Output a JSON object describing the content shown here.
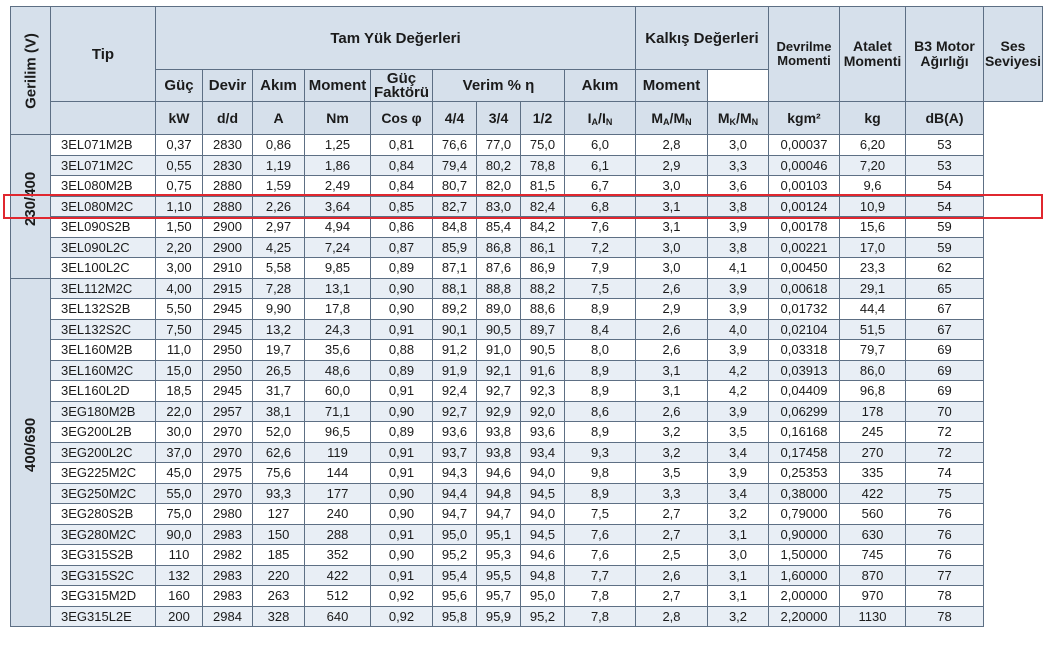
{
  "headers": {
    "gerilim": "Gerilim (V)",
    "tip": "Tip",
    "tam_yuk": "Tam Yük Değerleri",
    "kalkis": "Kalkış Değerleri",
    "devrilme": "Devrilme Momenti",
    "atalet": "Atalet Momenti",
    "b3": "B3 Motor Ağırlığı",
    "ses": "Ses Seviyesi",
    "guc": "Güç",
    "devir": "Devir",
    "akim": "Akım",
    "moment": "Moment",
    "guc_faktoru": "Güç Faktörü",
    "verim": "Verim % η",
    "k_akim": "Akım",
    "k_moment": "Moment",
    "units": {
      "kw": "kW",
      "dd": "d/d",
      "a": "A",
      "nm": "Nm",
      "cos": "Cos φ",
      "v44": "4/4",
      "v34": "3/4",
      "v12": "1/2",
      "ia_main": "I",
      "ia_sub": "A",
      "in_main": "I",
      "in_sub": "N",
      "ma_main": "M",
      "ma_sub": "A",
      "mn_main": "M",
      "mn_sub": "N",
      "mk_main": "M",
      "mk_sub": "K",
      "mn2_main": "M",
      "mn2_sub": "N",
      "kgm2": "kgm²",
      "kg": "kg",
      "db": "dB(A)"
    }
  },
  "voltage_groups": [
    "230/400",
    "400/690"
  ],
  "rows_group1": [
    [
      "3EL071M2B",
      "0,37",
      "2830",
      "0,86",
      "1,25",
      "0,81",
      "76,6",
      "77,0",
      "75,0",
      "6,0",
      "2,8",
      "3,0",
      "0,00037",
      "6,20",
      "53"
    ],
    [
      "3EL071M2C",
      "0,55",
      "2830",
      "1,19",
      "1,86",
      "0,84",
      "79,4",
      "80,2",
      "78,8",
      "6,1",
      "2,9",
      "3,3",
      "0,00046",
      "7,20",
      "53"
    ],
    [
      "3EL080M2B",
      "0,75",
      "2880",
      "1,59",
      "2,49",
      "0,84",
      "80,7",
      "82,0",
      "81,5",
      "6,7",
      "3,0",
      "3,6",
      "0,00103",
      "9,6",
      "54"
    ],
    [
      "3EL080M2C",
      "1,10",
      "2880",
      "2,26",
      "3,64",
      "0,85",
      "82,7",
      "83,0",
      "82,4",
      "6,8",
      "3,1",
      "3,8",
      "0,00124",
      "10,9",
      "54"
    ],
    [
      "3EL090S2B",
      "1,50",
      "2900",
      "2,97",
      "4,94",
      "0,86",
      "84,8",
      "85,4",
      "84,2",
      "7,6",
      "3,1",
      "3,9",
      "0,00178",
      "15,6",
      "59"
    ],
    [
      "3EL090L2C",
      "2,20",
      "2900",
      "4,25",
      "7,24",
      "0,87",
      "85,9",
      "86,8",
      "86,1",
      "7,2",
      "3,0",
      "3,8",
      "0,00221",
      "17,0",
      "59"
    ],
    [
      "3EL100L2C",
      "3,00",
      "2910",
      "5,58",
      "9,85",
      "0,89",
      "87,1",
      "87,6",
      "86,9",
      "7,9",
      "3,0",
      "4,1",
      "0,00450",
      "23,3",
      "62"
    ]
  ],
  "rows_group2": [
    [
      "3EL112M2C",
      "4,00",
      "2915",
      "7,28",
      "13,1",
      "0,90",
      "88,1",
      "88,8",
      "88,2",
      "7,5",
      "2,6",
      "3,9",
      "0,00618",
      "29,1",
      "65"
    ],
    [
      "3EL132S2B",
      "5,50",
      "2945",
      "9,90",
      "17,8",
      "0,90",
      "89,2",
      "89,0",
      "88,6",
      "8,9",
      "2,9",
      "3,9",
      "0,01732",
      "44,4",
      "67"
    ],
    [
      "3EL132S2C",
      "7,50",
      "2945",
      "13,2",
      "24,3",
      "0,91",
      "90,1",
      "90,5",
      "89,7",
      "8,4",
      "2,6",
      "4,0",
      "0,02104",
      "51,5",
      "67"
    ],
    [
      "3EL160M2B",
      "11,0",
      "2950",
      "19,7",
      "35,6",
      "0,88",
      "91,2",
      "91,0",
      "90,5",
      "8,0",
      "2,6",
      "3,9",
      "0,03318",
      "79,7",
      "69"
    ],
    [
      "3EL160M2C",
      "15,0",
      "2950",
      "26,5",
      "48,6",
      "0,89",
      "91,9",
      "92,1",
      "91,6",
      "8,9",
      "3,1",
      "4,2",
      "0,03913",
      "86,0",
      "69"
    ],
    [
      "3EL160L2D",
      "18,5",
      "2945",
      "31,7",
      "60,0",
      "0,91",
      "92,4",
      "92,7",
      "92,3",
      "8,9",
      "3,1",
      "4,2",
      "0,04409",
      "96,8",
      "69"
    ],
    [
      "3EG180M2B",
      "22,0",
      "2957",
      "38,1",
      "71,1",
      "0,90",
      "92,7",
      "92,9",
      "92,0",
      "8,6",
      "2,6",
      "3,9",
      "0,06299",
      "178",
      "70"
    ],
    [
      "3EG200L2B",
      "30,0",
      "2970",
      "52,0",
      "96,5",
      "0,89",
      "93,6",
      "93,8",
      "93,6",
      "8,9",
      "3,2",
      "3,5",
      "0,16168",
      "245",
      "72"
    ],
    [
      "3EG200L2C",
      "37,0",
      "2970",
      "62,6",
      "119",
      "0,91",
      "93,7",
      "93,8",
      "93,4",
      "9,3",
      "3,2",
      "3,4",
      "0,17458",
      "270",
      "72"
    ],
    [
      "3EG225M2C",
      "45,0",
      "2975",
      "75,6",
      "144",
      "0,91",
      "94,3",
      "94,6",
      "94,0",
      "9,8",
      "3,5",
      "3,9",
      "0,25353",
      "335",
      "74"
    ],
    [
      "3EG250M2C",
      "55,0",
      "2970",
      "93,3",
      "177",
      "0,90",
      "94,4",
      "94,8",
      "94,5",
      "8,9",
      "3,3",
      "3,4",
      "0,38000",
      "422",
      "75"
    ],
    [
      "3EG280S2B",
      "75,0",
      "2980",
      "127",
      "240",
      "0,90",
      "94,7",
      "94,7",
      "94,0",
      "7,5",
      "2,7",
      "3,2",
      "0,79000",
      "560",
      "76"
    ],
    [
      "3EG280M2C",
      "90,0",
      "2983",
      "150",
      "288",
      "0,91",
      "95,0",
      "95,1",
      "94,5",
      "7,6",
      "2,7",
      "3,1",
      "0,90000",
      "630",
      "76"
    ],
    [
      "3EG315S2B",
      "110",
      "2982",
      "185",
      "352",
      "0,90",
      "95,2",
      "95,3",
      "94,6",
      "7,6",
      "2,5",
      "3,0",
      "1,50000",
      "745",
      "76"
    ],
    [
      "3EG315S2C",
      "132",
      "2983",
      "220",
      "422",
      "0,91",
      "95,4",
      "95,5",
      "94,8",
      "7,7",
      "2,6",
      "3,1",
      "1,60000",
      "870",
      "77"
    ],
    [
      "3EG315M2D",
      "160",
      "2983",
      "263",
      "512",
      "0,92",
      "95,6",
      "95,7",
      "95,0",
      "7,8",
      "2,7",
      "3,1",
      "2,00000",
      "970",
      "78"
    ],
    [
      "3EG315L2E",
      "200",
      "2984",
      "328",
      "640",
      "0,92",
      "95,8",
      "95,9",
      "95,2",
      "7,8",
      "2,8",
      "3,2",
      "2,20000",
      "1130",
      "78"
    ]
  ],
  "highlight_color": "#e0272f",
  "header_bg": "#d6e0eb",
  "alt_row_bg": "#e8eef5"
}
